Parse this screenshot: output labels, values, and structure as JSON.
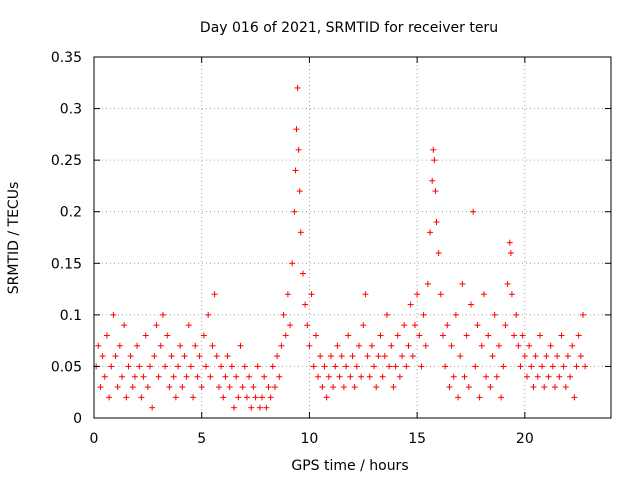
{
  "chart_data": {
    "type": "scatter",
    "title": "Day 016 of 2021, SRMTID for receiver teru",
    "xlabel": "GPS time / hours",
    "ylabel": "SRMTID / TECUs",
    "xlim": [
      0,
      24
    ],
    "ylim": [
      0,
      0.35
    ],
    "x_ticks": [
      0,
      5,
      10,
      15,
      20
    ],
    "x_tick_labels": [
      "0",
      "5",
      "10",
      "15",
      "20"
    ],
    "y_ticks": [
      0,
      0.05,
      0.1,
      0.15,
      0.2,
      0.25,
      0.3,
      0.35
    ],
    "y_tick_labels": [
      "0",
      "0.05",
      "0.1",
      "0.15",
      "0.2",
      "0.25",
      "0.3",
      "0.35"
    ],
    "grid": true,
    "marker": "+",
    "series_color": "#ff0000",
    "points": [
      [
        0.1,
        0.05
      ],
      [
        0.2,
        0.07
      ],
      [
        0.3,
        0.03
      ],
      [
        0.4,
        0.06
      ],
      [
        0.5,
        0.04
      ],
      [
        0.6,
        0.08
      ],
      [
        0.7,
        0.02
      ],
      [
        0.8,
        0.05
      ],
      [
        0.9,
        0.1
      ],
      [
        1.0,
        0.06
      ],
      [
        1.1,
        0.03
      ],
      [
        1.2,
        0.07
      ],
      [
        1.3,
        0.04
      ],
      [
        1.4,
        0.09
      ],
      [
        1.5,
        0.02
      ],
      [
        1.6,
        0.05
      ],
      [
        1.7,
        0.06
      ],
      [
        1.8,
        0.03
      ],
      [
        1.9,
        0.04
      ],
      [
        2.0,
        0.07
      ],
      [
        2.1,
        0.05
      ],
      [
        2.2,
        0.02
      ],
      [
        2.3,
        0.04
      ],
      [
        2.4,
        0.08
      ],
      [
        2.5,
        0.03
      ],
      [
        2.6,
        0.05
      ],
      [
        2.7,
        0.01
      ],
      [
        2.8,
        0.06
      ],
      [
        2.9,
        0.09
      ],
      [
        3.0,
        0.04
      ],
      [
        3.1,
        0.07
      ],
      [
        3.2,
        0.1
      ],
      [
        3.3,
        0.05
      ],
      [
        3.4,
        0.08
      ],
      [
        3.5,
        0.03
      ],
      [
        3.6,
        0.06
      ],
      [
        3.7,
        0.04
      ],
      [
        3.8,
        0.02
      ],
      [
        3.9,
        0.05
      ],
      [
        4.0,
        0.07
      ],
      [
        4.1,
        0.03
      ],
      [
        4.2,
        0.06
      ],
      [
        4.3,
        0.04
      ],
      [
        4.4,
        0.09
      ],
      [
        4.5,
        0.05
      ],
      [
        4.6,
        0.02
      ],
      [
        4.7,
        0.07
      ],
      [
        4.8,
        0.04
      ],
      [
        4.9,
        0.06
      ],
      [
        5.0,
        0.03
      ],
      [
        5.1,
        0.08
      ],
      [
        5.2,
        0.05
      ],
      [
        5.3,
        0.1
      ],
      [
        5.4,
        0.04
      ],
      [
        5.5,
        0.07
      ],
      [
        5.6,
        0.12
      ],
      [
        5.7,
        0.06
      ],
      [
        5.8,
        0.03
      ],
      [
        5.9,
        0.05
      ],
      [
        6.0,
        0.02
      ],
      [
        6.1,
        0.04
      ],
      [
        6.2,
        0.06
      ],
      [
        6.3,
        0.03
      ],
      [
        6.4,
        0.05
      ],
      [
        6.5,
        0.01
      ],
      [
        6.6,
        0.04
      ],
      [
        6.7,
        0.02
      ],
      [
        6.8,
        0.07
      ],
      [
        6.9,
        0.03
      ],
      [
        7.0,
        0.05
      ],
      [
        7.1,
        0.02
      ],
      [
        7.2,
        0.04
      ],
      [
        7.3,
        0.01
      ],
      [
        7.4,
        0.03
      ],
      [
        7.5,
        0.02
      ],
      [
        7.6,
        0.05
      ],
      [
        7.7,
        0.01
      ],
      [
        7.8,
        0.02
      ],
      [
        7.9,
        0.04
      ],
      [
        8.0,
        0.01
      ],
      [
        8.1,
        0.03
      ],
      [
        8.2,
        0.02
      ],
      [
        8.3,
        0.05
      ],
      [
        8.4,
        0.03
      ],
      [
        8.5,
        0.06
      ],
      [
        8.6,
        0.04
      ],
      [
        8.7,
        0.07
      ],
      [
        8.8,
        0.1
      ],
      [
        8.9,
        0.08
      ],
      [
        9.0,
        0.12
      ],
      [
        9.1,
        0.09
      ],
      [
        9.2,
        0.15
      ],
      [
        9.3,
        0.2
      ],
      [
        9.35,
        0.24
      ],
      [
        9.4,
        0.28
      ],
      [
        9.45,
        0.32
      ],
      [
        9.5,
        0.26
      ],
      [
        9.55,
        0.22
      ],
      [
        9.6,
        0.18
      ],
      [
        9.7,
        0.14
      ],
      [
        9.8,
        0.11
      ],
      [
        9.9,
        0.09
      ],
      [
        10.0,
        0.07
      ],
      [
        10.1,
        0.12
      ],
      [
        10.2,
        0.05
      ],
      [
        10.3,
        0.08
      ],
      [
        10.4,
        0.04
      ],
      [
        10.5,
        0.06
      ],
      [
        10.6,
        0.03
      ],
      [
        10.7,
        0.05
      ],
      [
        10.8,
        0.02
      ],
      [
        10.9,
        0.04
      ],
      [
        11.0,
        0.06
      ],
      [
        11.1,
        0.03
      ],
      [
        11.2,
        0.05
      ],
      [
        11.3,
        0.07
      ],
      [
        11.4,
        0.04
      ],
      [
        11.5,
        0.06
      ],
      [
        11.6,
        0.03
      ],
      [
        11.7,
        0.05
      ],
      [
        11.8,
        0.08
      ],
      [
        11.9,
        0.04
      ],
      [
        12.0,
        0.06
      ],
      [
        12.1,
        0.03
      ],
      [
        12.2,
        0.05
      ],
      [
        12.3,
        0.07
      ],
      [
        12.4,
        0.04
      ],
      [
        12.5,
        0.09
      ],
      [
        12.6,
        0.12
      ],
      [
        12.7,
        0.06
      ],
      [
        12.8,
        0.04
      ],
      [
        12.9,
        0.07
      ],
      [
        13.0,
        0.05
      ],
      [
        13.1,
        0.03
      ],
      [
        13.2,
        0.06
      ],
      [
        13.3,
        0.08
      ],
      [
        13.4,
        0.04
      ],
      [
        13.5,
        0.06
      ],
      [
        13.6,
        0.1
      ],
      [
        13.7,
        0.05
      ],
      [
        13.8,
        0.07
      ],
      [
        13.9,
        0.03
      ],
      [
        14.0,
        0.05
      ],
      [
        14.1,
        0.08
      ],
      [
        14.2,
        0.04
      ],
      [
        14.3,
        0.06
      ],
      [
        14.4,
        0.09
      ],
      [
        14.5,
        0.05
      ],
      [
        14.6,
        0.07
      ],
      [
        14.7,
        0.11
      ],
      [
        14.8,
        0.06
      ],
      [
        14.9,
        0.09
      ],
      [
        15.0,
        0.12
      ],
      [
        15.1,
        0.08
      ],
      [
        15.2,
        0.05
      ],
      [
        15.3,
        0.1
      ],
      [
        15.4,
        0.07
      ],
      [
        15.5,
        0.13
      ],
      [
        15.6,
        0.18
      ],
      [
        15.7,
        0.23
      ],
      [
        15.75,
        0.26
      ],
      [
        15.8,
        0.25
      ],
      [
        15.85,
        0.22
      ],
      [
        15.9,
        0.19
      ],
      [
        16.0,
        0.16
      ],
      [
        16.1,
        0.12
      ],
      [
        16.2,
        0.08
      ],
      [
        16.3,
        0.05
      ],
      [
        16.4,
        0.09
      ],
      [
        16.5,
        0.03
      ],
      [
        16.6,
        0.07
      ],
      [
        16.7,
        0.04
      ],
      [
        16.8,
        0.1
      ],
      [
        16.9,
        0.02
      ],
      [
        17.0,
        0.06
      ],
      [
        17.1,
        0.13
      ],
      [
        17.2,
        0.04
      ],
      [
        17.3,
        0.08
      ],
      [
        17.4,
        0.03
      ],
      [
        17.5,
        0.11
      ],
      [
        17.6,
        0.2
      ],
      [
        17.7,
        0.05
      ],
      [
        17.8,
        0.09
      ],
      [
        17.9,
        0.02
      ],
      [
        18.0,
        0.07
      ],
      [
        18.1,
        0.12
      ],
      [
        18.2,
        0.04
      ],
      [
        18.3,
        0.08
      ],
      [
        18.4,
        0.03
      ],
      [
        18.5,
        0.06
      ],
      [
        18.6,
        0.1
      ],
      [
        18.7,
        0.04
      ],
      [
        18.8,
        0.07
      ],
      [
        18.9,
        0.02
      ],
      [
        19.0,
        0.05
      ],
      [
        19.1,
        0.09
      ],
      [
        19.2,
        0.13
      ],
      [
        19.3,
        0.17
      ],
      [
        19.35,
        0.16
      ],
      [
        19.4,
        0.12
      ],
      [
        19.5,
        0.08
      ],
      [
        19.6,
        0.1
      ],
      [
        19.7,
        0.07
      ],
      [
        19.8,
        0.05
      ],
      [
        19.9,
        0.08
      ],
      [
        20.0,
        0.06
      ],
      [
        20.1,
        0.04
      ],
      [
        20.2,
        0.07
      ],
      [
        20.3,
        0.05
      ],
      [
        20.4,
        0.03
      ],
      [
        20.5,
        0.06
      ],
      [
        20.6,
        0.04
      ],
      [
        20.7,
        0.08
      ],
      [
        20.8,
        0.05
      ],
      [
        20.9,
        0.03
      ],
      [
        21.0,
        0.06
      ],
      [
        21.1,
        0.04
      ],
      [
        21.2,
        0.07
      ],
      [
        21.3,
        0.05
      ],
      [
        21.4,
        0.03
      ],
      [
        21.5,
        0.06
      ],
      [
        21.6,
        0.04
      ],
      [
        21.7,
        0.08
      ],
      [
        21.8,
        0.05
      ],
      [
        21.9,
        0.03
      ],
      [
        22.0,
        0.06
      ],
      [
        22.1,
        0.04
      ],
      [
        22.2,
        0.07
      ],
      [
        22.3,
        0.02
      ],
      [
        22.4,
        0.05
      ],
      [
        22.5,
        0.08
      ],
      [
        22.6,
        0.06
      ],
      [
        22.7,
        0.1
      ],
      [
        22.8,
        0.05
      ]
    ]
  }
}
